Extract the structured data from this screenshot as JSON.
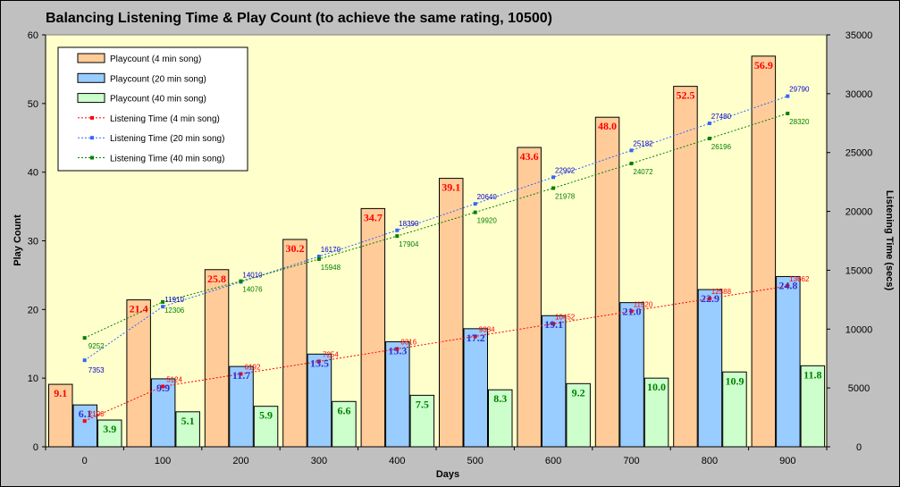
{
  "chart_data": {
    "type": "bar",
    "title": "Balancing Listening Time & Play Count (to achieve the same rating, 10500)",
    "xlabel": "Days",
    "ylabel": "Play Count",
    "y2label": "Listening Time (secs)",
    "categories": [
      "0",
      "100",
      "200",
      "300",
      "400",
      "500",
      "600",
      "700",
      "800",
      "900"
    ],
    "ylim": [
      0,
      60
    ],
    "yticks": [
      0,
      10,
      20,
      30,
      40,
      50,
      60
    ],
    "y2lim": [
      0,
      35000
    ],
    "y2ticks": [
      0,
      5000,
      10000,
      15000,
      20000,
      25000,
      30000,
      35000
    ],
    "legend_position": "top-left",
    "plot_background": "#ffffcc",
    "grid": false,
    "bar_series": [
      {
        "name": "Playcount (4 min song)",
        "color": "#ffcc99",
        "label_color": "#ff0000",
        "values": [
          9.1,
          21.4,
          25.8,
          30.2,
          34.7,
          39.1,
          43.6,
          48.0,
          52.5,
          56.9
        ],
        "labels": [
          "9.1",
          "21.4",
          "25.8",
          "30.2",
          "34.7",
          "39.1",
          "43.6",
          "48.0",
          "52.5",
          "56.9"
        ]
      },
      {
        "name": "Playcount (20 min song)",
        "color": "#99ccff",
        "label_color": "#3333cc",
        "values": [
          6.1,
          9.9,
          11.7,
          13.5,
          15.3,
          17.2,
          19.1,
          21.0,
          22.9,
          24.8
        ],
        "labels": [
          "6.1",
          "9.9",
          "11.7",
          "13.5",
          "15.3",
          "17.2",
          "19.1",
          "21.0",
          "22.9",
          "24.8"
        ]
      },
      {
        "name": "Playcount (40 min song)",
        "color": "#ccffcc",
        "label_color": "#008000",
        "values": [
          3.9,
          5.1,
          5.9,
          6.6,
          7.5,
          8.3,
          9.2,
          10.0,
          10.9,
          11.8
        ],
        "labels": [
          "3.9",
          "5.1",
          "5.9",
          "6.6",
          "7.5",
          "8.3",
          "9.2",
          "10.0",
          "10.9",
          "11.8"
        ]
      }
    ],
    "line_series": [
      {
        "name": "Listening Time (4 min song)",
        "color": "#ff0000",
        "label_color": "#ff0000",
        "values": [
          2190,
          5124,
          6192,
          7254,
          8316,
          9384,
          10452,
          11520,
          12588,
          13662
        ],
        "labels": [
          "2190",
          "5124",
          "6192",
          "7254",
          "8316",
          "9384",
          "10452",
          "11520",
          "12588",
          "13662"
        ]
      },
      {
        "name": "Listening Time (20 min song)",
        "color": "#3366ff",
        "label_color": "#0000cc",
        "values": [
          7353,
          11910,
          14010,
          16170,
          18390,
          20640,
          22902,
          25182,
          27480,
          29790
        ],
        "labels": [
          "7353",
          "11910",
          "14010",
          "16170",
          "18390",
          "20640",
          "22902",
          "25182",
          "27480",
          "29790"
        ]
      },
      {
        "name": "Listening Time (40 min song)",
        "color": "#008000",
        "label_color": "#008000",
        "values": [
          9252,
          12306,
          14076,
          15948,
          17904,
          19920,
          21978,
          24072,
          26196,
          28320
        ],
        "labels": [
          "9252",
          "12306",
          "14076",
          "15948",
          "17904",
          "19920",
          "21978",
          "24072",
          "26196",
          "28320"
        ]
      }
    ]
  }
}
